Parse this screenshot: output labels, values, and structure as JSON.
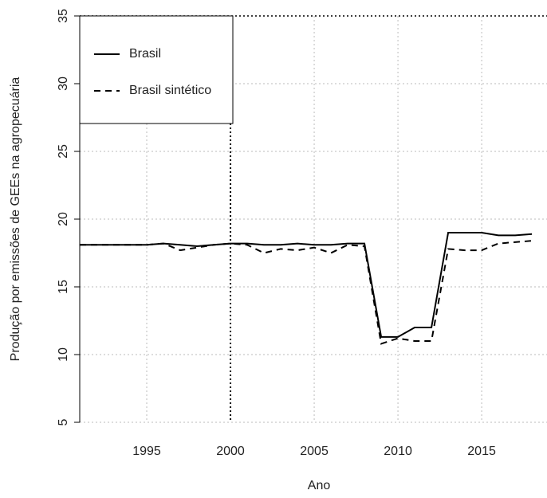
{
  "chart_data": {
    "type": "line",
    "x_label": "Ano",
    "y_label": "Produção por emissões de GEEs na agropecuária",
    "x": [
      1991,
      1992,
      1993,
      1994,
      1995,
      1996,
      1997,
      1998,
      1999,
      2000,
      2001,
      2002,
      2003,
      2004,
      2005,
      2006,
      2007,
      2008,
      2009,
      2010,
      2011,
      2012,
      2013,
      2014,
      2015,
      2016,
      2017,
      2018
    ],
    "series": [
      {
        "name": "Brasil",
        "color": "#000000",
        "dash": "solid",
        "values": [
          18.1,
          18.1,
          18.1,
          18.1,
          18.1,
          18.2,
          18.1,
          18.0,
          18.1,
          18.2,
          18.2,
          18.1,
          18.1,
          18.2,
          18.1,
          18.1,
          18.2,
          18.2,
          11.3,
          11.3,
          12.0,
          12.0,
          19.0,
          19.0,
          19.0,
          18.8,
          18.8,
          18.9
        ]
      },
      {
        "name": "Brasil sintético",
        "color": "#000000",
        "dash": "dashed",
        "values": [
          18.1,
          18.1,
          18.1,
          18.1,
          18.1,
          18.2,
          17.7,
          17.9,
          18.1,
          18.2,
          18.1,
          17.5,
          17.8,
          17.7,
          17.9,
          17.5,
          18.1,
          18.0,
          10.8,
          11.2,
          11.0,
          11.0,
          17.8,
          17.7,
          17.7,
          18.2,
          18.3,
          18.4
        ]
      }
    ],
    "xlim": [
      1991,
      2018.9
    ],
    "ylim": [
      5,
      35
    ],
    "xticks": [
      1995,
      2000,
      2005,
      2010,
      2015
    ],
    "yticks": [
      5,
      10,
      15,
      20,
      25,
      30,
      35
    ],
    "treatment_x": 2000,
    "grid": true,
    "legend": "top-left"
  }
}
